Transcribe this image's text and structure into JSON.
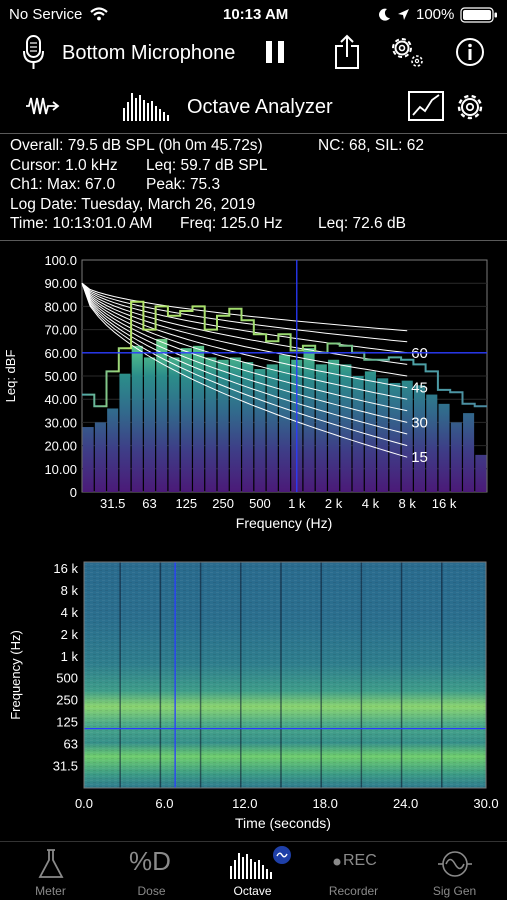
{
  "status_bar": {
    "carrier": "No Service",
    "time": "10:13 AM",
    "battery": "100%"
  },
  "header": {
    "microphone": "Bottom Microphone",
    "mode_title": "Octave Analyzer"
  },
  "info": {
    "overall": "Overall: 79.5  dB SPL  (0h  0m 45.72s)",
    "nc_sil": "NC: 68, SIL: 62",
    "cursor": "Cursor: 1.0 kHz",
    "cursor_leq": "Leq: 59.7 dB SPL",
    "ch1": "Ch1:  Max: 67.0",
    "peak": "Peak: 75.3",
    "log_date": "Log Date: Tuesday, March 26, 2019",
    "time": "Time: 10:13:01.0 AM",
    "freq": "Freq: 125.0 Hz",
    "leq": "Leq: 72.6 dB"
  },
  "chart_data": [
    {
      "type": "bar",
      "xlabel": "Frequency (Hz)",
      "ylabel": "Leq: dBF",
      "ylim": [
        0,
        100
      ],
      "ytick_labels": [
        "100.0",
        "90.00",
        "80.00",
        "70.00",
        "60.00",
        "50.00",
        "40.00",
        "30.00",
        "20.00",
        "10.00",
        "0"
      ],
      "xtick_labels": [
        "31.5",
        "63",
        "125",
        "250",
        "500",
        "1 k",
        "2 k",
        "4 k",
        "8 k",
        "16 k"
      ],
      "nc_curve_labels": [
        "60",
        "45",
        "30",
        "15"
      ],
      "series": [
        {
          "name": "Leq",
          "values": [
            28,
            30,
            36,
            51,
            63,
            58,
            66,
            58,
            62,
            63,
            58,
            57,
            58,
            56,
            53,
            55,
            59,
            57,
            62,
            55,
            57,
            55,
            50,
            52,
            49,
            47,
            48,
            46,
            42,
            38,
            30,
            34,
            16
          ]
        },
        {
          "name": "Max",
          "values": [
            42,
            37,
            52,
            62,
            82,
            70,
            80,
            76,
            78,
            80,
            70,
            76,
            79,
            74,
            68,
            65,
            68,
            61,
            63,
            60,
            64,
            63,
            60,
            57,
            57,
            58,
            57,
            55,
            52,
            44,
            43,
            38,
            37
          ]
        }
      ],
      "cursor": {
        "x": "1 k",
        "y": 60
      }
    },
    {
      "type": "heatmap",
      "xlabel": "Time (seconds)",
      "ylabel": "Frequency (Hz)",
      "xlim": [
        0,
        30
      ],
      "xtick_labels": [
        "0.0",
        "6.0",
        "12.0",
        "18.0",
        "24.0",
        "30.0"
      ],
      "ytick_labels": [
        "16 k",
        "8 k",
        "4 k",
        "2 k",
        "1 k",
        "500",
        "250",
        "125",
        "63",
        "31.5"
      ],
      "cursor": {
        "x": 6.8,
        "y": "125"
      }
    }
  ],
  "tabs": [
    {
      "label": "Meter"
    },
    {
      "label": "Dose"
    },
    {
      "label": "Octave"
    },
    {
      "label": "Recorder"
    },
    {
      "label": "Sig Gen"
    }
  ],
  "tab_texts": {
    "dose_icon": "%D",
    "rec_icon": "REC"
  },
  "colors": {
    "background": "#000000",
    "cursor": "#2a3bff",
    "nc_curves": "#ffffff",
    "max_line_high": "#b6e56a",
    "max_line_low": "#4ea6a8",
    "bar_top": "#a8e07c",
    "bar_bottom": "#4b1a78"
  }
}
